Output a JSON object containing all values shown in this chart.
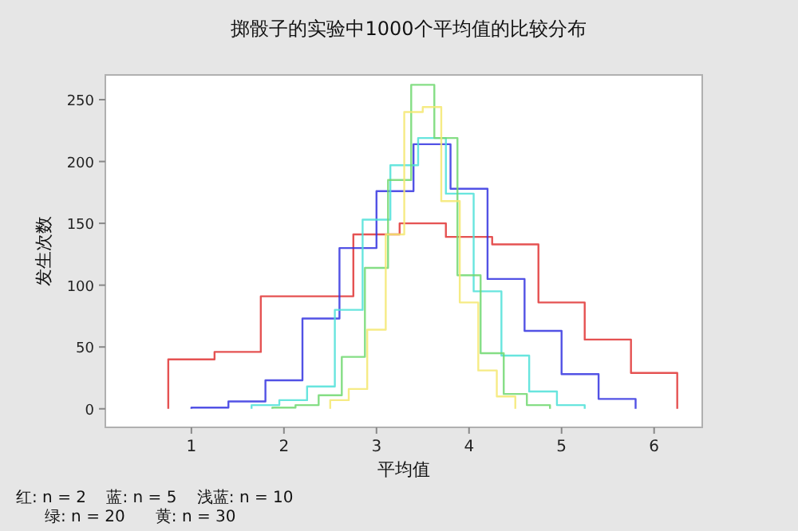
{
  "chart_data": {
    "type": "step",
    "title": "掷骰子的实验中1000个平均值的比较分布",
    "xlabel": "平均值",
    "ylabel": "发生次数",
    "xlim": [
      0.07,
      6.52
    ],
    "ylim": [
      -15,
      270
    ],
    "xticks": [
      1,
      2,
      3,
      4,
      5,
      6
    ],
    "yticks": [
      0,
      50,
      100,
      150,
      200,
      250
    ],
    "grid": false,
    "marker": "none",
    "series": [
      {
        "color": "#e03434",
        "x": [
          0.75,
          0.75,
          1.25,
          1.75,
          2.25,
          2.75,
          3.25,
          3.75,
          4.25,
          4.75,
          5.25,
          5.75,
          6.25
        ],
        "values": [
          0,
          40,
          46,
          91,
          91,
          141,
          150,
          139,
          133,
          86,
          56,
          29,
          0
        ]
      },
      {
        "color": "#3434e0",
        "x": [
          1.0,
          1.0,
          1.4,
          1.8,
          2.2,
          2.6,
          3.0,
          3.4,
          3.8,
          4.2,
          4.6,
          5.0,
          5.4,
          5.8
        ],
        "values": [
          0,
          1,
          6,
          23,
          73,
          130,
          176,
          214,
          178,
          105,
          63,
          28,
          8,
          0
        ]
      },
      {
        "color": "#4ee0d8",
        "x": [
          1.65,
          1.65,
          1.95,
          2.25,
          2.55,
          2.85,
          3.15,
          3.45,
          3.75,
          4.05,
          4.35,
          4.65,
          4.95,
          5.25
        ],
        "values": [
          0,
          3,
          7,
          18,
          80,
          153,
          197,
          219,
          174,
          95,
          43,
          14,
          3,
          0
        ]
      },
      {
        "color": "#70d870",
        "x": [
          1.875,
          1.875,
          2.125,
          2.375,
          2.625,
          2.875,
          3.125,
          3.375,
          3.625,
          3.875,
          4.125,
          4.375,
          4.625,
          4.875
        ],
        "values": [
          0,
          1,
          3,
          11,
          42,
          114,
          185,
          262,
          219,
          108,
          45,
          12,
          3,
          0
        ]
      },
      {
        "color": "#f4e870",
        "x": [
          2.5,
          2.5,
          2.7,
          2.9,
          3.1,
          3.3,
          3.5,
          3.7,
          3.9,
          4.1,
          4.3,
          4.5
        ],
        "values": [
          0,
          7,
          16,
          64,
          141,
          240,
          244,
          168,
          86,
          31,
          10,
          0
        ]
      }
    ],
    "annotations": [
      "红: n = 2    蓝: n = 5    浅蓝: n = 10",
      "绿: n = 20      黄: n = 30"
    ]
  }
}
